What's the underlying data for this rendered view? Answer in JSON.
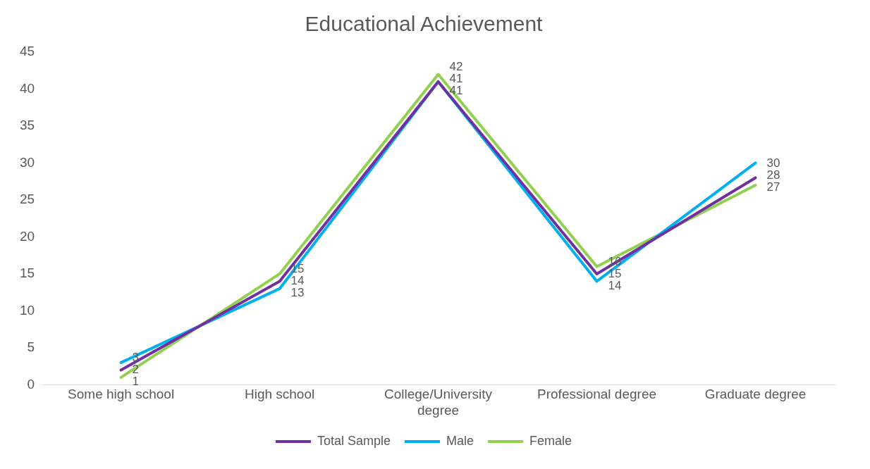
{
  "chart_data": {
    "type": "line",
    "title": "Educational Achievement",
    "categories": [
      "Some high school",
      "High school",
      "College/University degree",
      "Professional degree",
      "Graduate degree"
    ],
    "series": [
      {
        "name": "Total Sample",
        "color": "#7030a0",
        "values": [
          2,
          14,
          41,
          15,
          28
        ]
      },
      {
        "name": "Male",
        "color": "#00b0f0",
        "values": [
          3,
          13,
          41,
          14,
          30
        ]
      },
      {
        "name": "Female",
        "color": "#92d050",
        "values": [
          1,
          15,
          42,
          16,
          27
        ]
      }
    ],
    "ylim": [
      0,
      45
    ],
    "yticks": [
      0,
      5,
      10,
      15,
      20,
      25,
      30,
      35,
      40,
      45
    ],
    "grid": false,
    "legend": "bottom",
    "marker": "none",
    "line_style": "solid",
    "data_labels": true
  }
}
